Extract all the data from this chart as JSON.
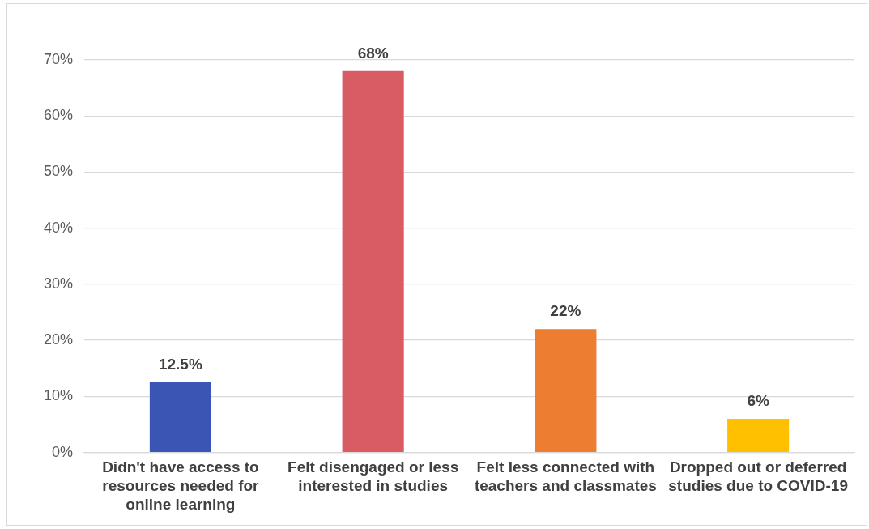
{
  "chart_data": {
    "type": "bar",
    "categories": [
      "Didn't have access to resources needed for online learning",
      "Felt disengaged or less interested in studies",
      "Felt less connected with teachers and classmates",
      "Dropped out or deferred studies due to COVID-19"
    ],
    "values": [
      12.5,
      68,
      22,
      6
    ],
    "colors": [
      "#3a55b4",
      "#d95b63",
      "#ed7d31",
      "#ffc000"
    ],
    "value_labels": [
      "12.5%",
      "68%",
      "22%",
      "6%"
    ],
    "ylim": [
      0,
      70
    ],
    "yticks": [
      {
        "value": 0,
        "label": "0%"
      },
      {
        "value": 10,
        "label": "10%"
      },
      {
        "value": 20,
        "label": "20%"
      },
      {
        "value": 30,
        "label": "30%"
      },
      {
        "value": 40,
        "label": "40%"
      },
      {
        "value": 50,
        "label": "50%"
      },
      {
        "value": 60,
        "label": "60%"
      },
      {
        "value": 70,
        "label": "70%"
      }
    ],
    "grid": "y",
    "legend": false
  }
}
